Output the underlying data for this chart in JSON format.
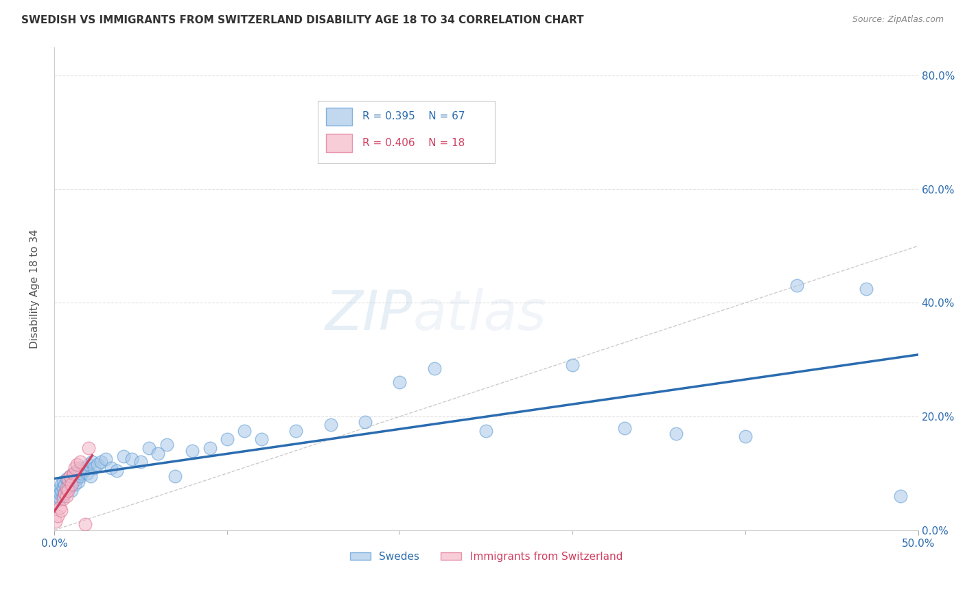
{
  "title": "SWEDISH VS IMMIGRANTS FROM SWITZERLAND DISABILITY AGE 18 TO 34 CORRELATION CHART",
  "source": "Source: ZipAtlas.com",
  "ylabel": "Disability Age 18 to 34",
  "xlim": [
    0.0,
    0.5
  ],
  "ylim": [
    0.0,
    0.85
  ],
  "xtick_vals": [
    0.0,
    0.5
  ],
  "ytick_vals": [
    0.0,
    0.2,
    0.4,
    0.6,
    0.8
  ],
  "blue_fill": "#a8c8e8",
  "blue_edge": "#5b9bd5",
  "blue_line": "#2b6cb0",
  "pink_fill": "#f4b8c8",
  "pink_edge": "#e07090",
  "pink_line": "#d04060",
  "diagonal_color": "#cccccc",
  "grid_color": "#e0e0e0",
  "watermark": "ZIPatlas",
  "legend_blue_r": "R = 0.395",
  "legend_blue_n": "N = 67",
  "legend_pink_r": "R = 0.406",
  "legend_pink_n": "N = 18",
  "blue_x": [
    0.001,
    0.002,
    0.002,
    0.003,
    0.003,
    0.004,
    0.004,
    0.005,
    0.005,
    0.005,
    0.006,
    0.006,
    0.007,
    0.007,
    0.008,
    0.008,
    0.009,
    0.009,
    0.01,
    0.01,
    0.011,
    0.011,
    0.012,
    0.012,
    0.013,
    0.013,
    0.014,
    0.015,
    0.015,
    0.016,
    0.017,
    0.018,
    0.019,
    0.02,
    0.021,
    0.022,
    0.023,
    0.025,
    0.027,
    0.03,
    0.033,
    0.036,
    0.04,
    0.045,
    0.05,
    0.055,
    0.06,
    0.065,
    0.07,
    0.08,
    0.09,
    0.1,
    0.11,
    0.12,
    0.14,
    0.16,
    0.18,
    0.2,
    0.22,
    0.25,
    0.3,
    0.33,
    0.36,
    0.4,
    0.43,
    0.47,
    0.49
  ],
  "blue_y": [
    0.05,
    0.06,
    0.07,
    0.055,
    0.065,
    0.07,
    0.08,
    0.06,
    0.075,
    0.085,
    0.065,
    0.08,
    0.07,
    0.09,
    0.075,
    0.085,
    0.08,
    0.095,
    0.07,
    0.09,
    0.085,
    0.1,
    0.08,
    0.095,
    0.09,
    0.105,
    0.085,
    0.095,
    0.11,
    0.1,
    0.105,
    0.11,
    0.1,
    0.115,
    0.095,
    0.12,
    0.11,
    0.115,
    0.12,
    0.125,
    0.11,
    0.105,
    0.13,
    0.125,
    0.12,
    0.145,
    0.135,
    0.15,
    0.095,
    0.14,
    0.145,
    0.16,
    0.175,
    0.16,
    0.175,
    0.185,
    0.19,
    0.26,
    0.285,
    0.175,
    0.29,
    0.18,
    0.17,
    0.165,
    0.43,
    0.425,
    0.06
  ],
  "pink_x": [
    0.001,
    0.002,
    0.003,
    0.004,
    0.005,
    0.006,
    0.007,
    0.007,
    0.008,
    0.008,
    0.009,
    0.01,
    0.011,
    0.012,
    0.013,
    0.015,
    0.018,
    0.02
  ],
  "pink_y": [
    0.015,
    0.025,
    0.04,
    0.035,
    0.055,
    0.065,
    0.06,
    0.075,
    0.07,
    0.09,
    0.095,
    0.08,
    0.1,
    0.11,
    0.115,
    0.12,
    0.01,
    0.145
  ],
  "blue_line_x0": 0.0,
  "blue_line_x1": 0.5,
  "blue_line_y0": 0.055,
  "blue_line_y1": 0.265,
  "pink_line_x0": 0.0,
  "pink_line_x1": 0.022,
  "pink_line_y0": 0.04,
  "pink_line_y1": 0.185
}
